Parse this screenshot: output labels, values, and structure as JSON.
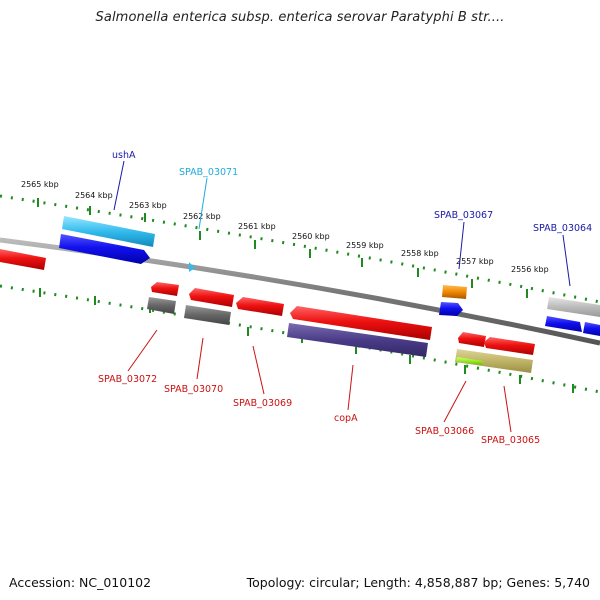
{
  "title": "Salmonella enterica subsp. enterica serovar Paratyphi B str....",
  "footer": {
    "accession": "Accession: NC_010102",
    "summary": "Topology: circular; Length: 4,858,887 bp; Genes: 5,740"
  },
  "colors": {
    "backbone": "#8a8a8a",
    "ruler": "#1f8a1f",
    "forward_label": "#1a1aa8",
    "reverse_label": "#cc1111",
    "cyan_label": "#22aadd"
  },
  "scale_labels": [
    "2565 kbp",
    "2564 kbp",
    "2563 kbp",
    "2562 kbp",
    "2561 kbp",
    "2560 kbp",
    "2559 kbp",
    "2558 kbp",
    "2557 kbp",
    "2556 kbp"
  ],
  "gene_labels": [
    {
      "key": "ushA",
      "text": "ushA",
      "color": "#1a1aa8"
    },
    {
      "key": "spab-03071",
      "text": "SPAB_03071",
      "color": "#22aadd"
    },
    {
      "key": "spab-03067",
      "text": "SPAB_03067",
      "color": "#1a1aa8"
    },
    {
      "key": "spab-03064",
      "text": "SPAB_03064",
      "color": "#1a1aa8"
    },
    {
      "key": "spab-03072",
      "text": "SPAB_03072",
      "color": "#cc1111"
    },
    {
      "key": "spab-03070",
      "text": "SPAB_03070",
      "color": "#cc1111"
    },
    {
      "key": "spab-03069",
      "text": "SPAB_03069",
      "color": "#cc1111"
    },
    {
      "key": "copa",
      "text": "copA",
      "color": "#cc1111"
    },
    {
      "key": "spab-03066",
      "text": "SPAB_03066",
      "color": "#cc1111"
    },
    {
      "key": "spab-03065",
      "text": "SPAB_03065",
      "color": "#cc1111"
    }
  ]
}
